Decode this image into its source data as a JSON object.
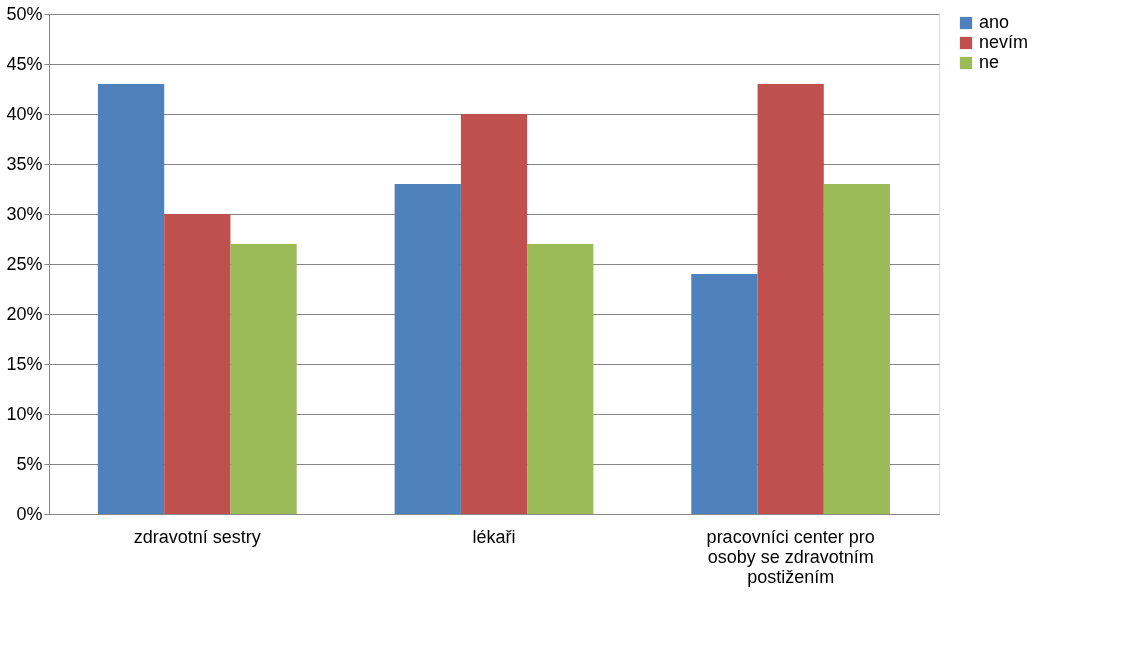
{
  "chart_data": {
    "type": "bar",
    "categories": [
      "zdravotní sestry",
      "lékaři",
      "pracovníci center pro osoby se zdravotním postižením"
    ],
    "series": [
      {
        "name": "ano",
        "color": "#4f81bd",
        "values": [
          43,
          33,
          24
        ]
      },
      {
        "name": "nevím",
        "color": "#c0504d",
        "values": [
          30,
          40,
          43
        ]
      },
      {
        "name": "ne",
        "color": "#9bbb59",
        "values": [
          27,
          27,
          33
        ]
      }
    ],
    "ylim": [
      0,
      50
    ],
    "yticks": [
      {
        "value": 0,
        "label": "0%"
      },
      {
        "value": 5,
        "label": "5%"
      },
      {
        "value": 10,
        "label": "10%"
      },
      {
        "value": 15,
        "label": "15%"
      },
      {
        "value": 20,
        "label": "20%"
      },
      {
        "value": 25,
        "label": "25%"
      },
      {
        "value": 30,
        "label": "30%"
      },
      {
        "value": 35,
        "label": "35%"
      },
      {
        "value": 40,
        "label": "40%"
      },
      {
        "value": 45,
        "label": "45%"
      },
      {
        "value": 50,
        "label": "50%"
      }
    ],
    "grid": "y",
    "legend": "right"
  }
}
